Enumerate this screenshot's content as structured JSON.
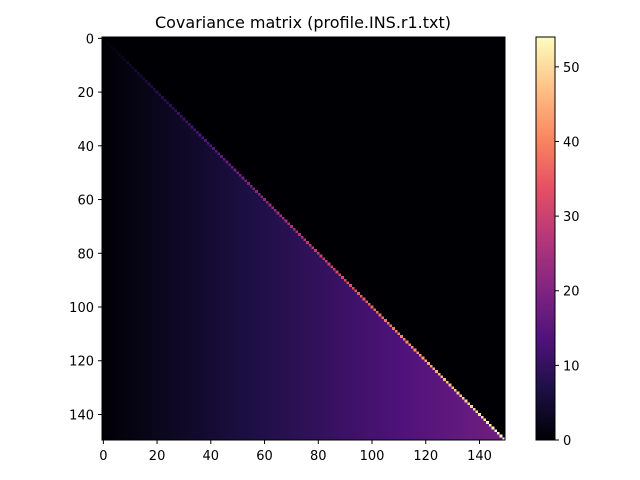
{
  "chart_data": {
    "type": "heatmap",
    "title": "Covariance matrix (profile.INS.r1.txt)",
    "xlabel": "",
    "ylabel": "",
    "size": 150,
    "xlim": [
      0,
      150
    ],
    "ylim": [
      150,
      0
    ],
    "x_ticks": [
      0,
      20,
      40,
      60,
      80,
      100,
      120,
      140
    ],
    "y_ticks": [
      0,
      20,
      40,
      60,
      80,
      100,
      120,
      140
    ],
    "colormap": "magma",
    "colorbar": {
      "min": 0,
      "max": 54,
      "ticks": [
        0,
        10,
        20,
        30,
        40,
        50
      ]
    },
    "structure": "lower-triangular; entry(i,j) ≈ 0.12·(j+1) for j<i, diagonal ≈ 0.36·(i+1), upper triangle = 0",
    "sample_values": [
      {
        "row": 149,
        "col": 149,
        "value": 54
      },
      {
        "row": 100,
        "col": 100,
        "value": 36
      },
      {
        "row": 50,
        "col": 50,
        "value": 18
      },
      {
        "row": 149,
        "col": 140,
        "value": 17
      },
      {
        "row": 149,
        "col": 100,
        "value": 12
      },
      {
        "row": 149,
        "col": 50,
        "value": 6
      },
      {
        "row": 149,
        "col": 0,
        "value": 0.1
      }
    ]
  }
}
